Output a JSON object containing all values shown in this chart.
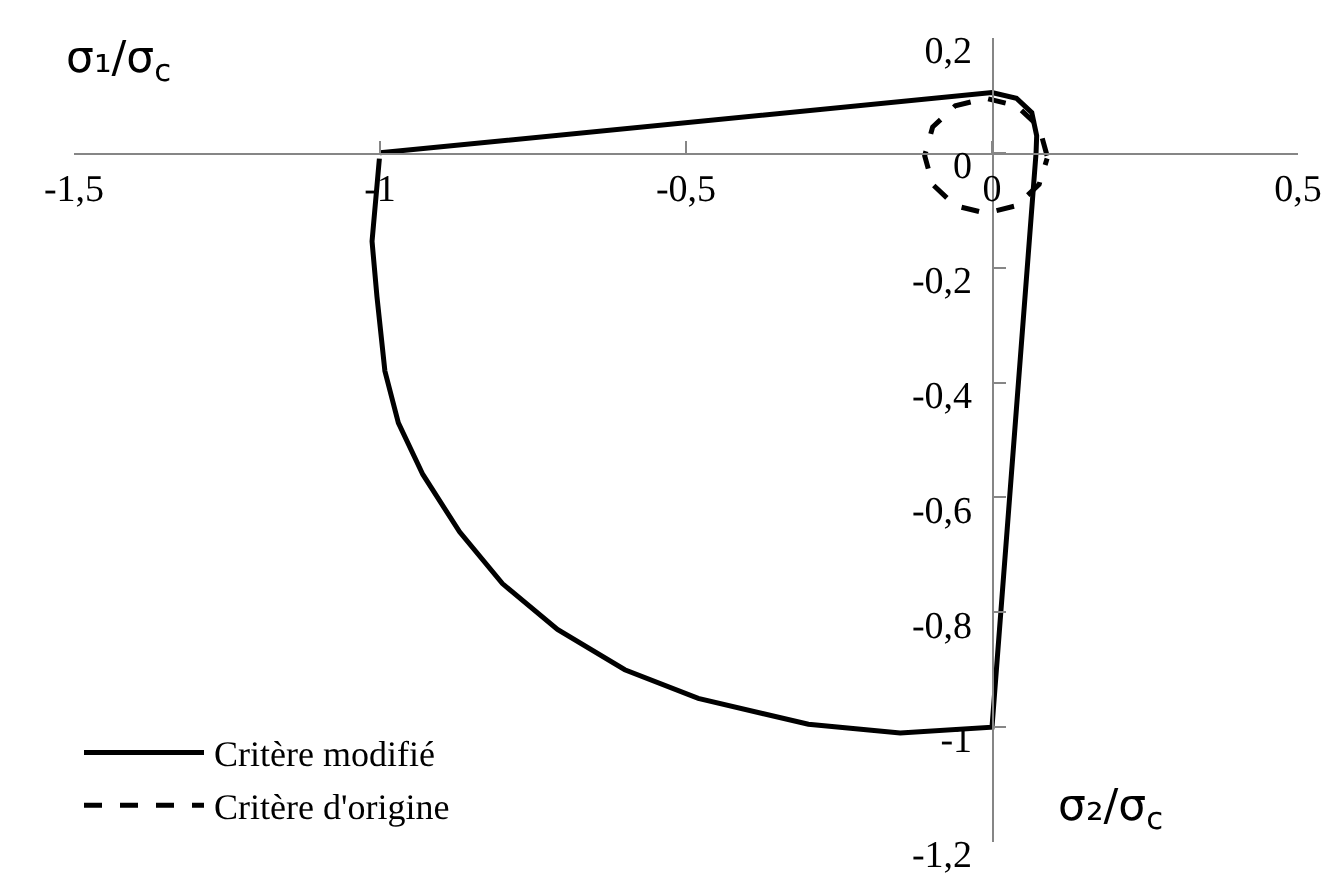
{
  "chart_data": {
    "type": "line",
    "xlabel": "σ₁/σ$_{c}$",
    "ylabel": "σ₂/σ$_{c}$",
    "xlim": [
      -1.5,
      0.5
    ],
    "ylim": [
      -1.2,
      0.2
    ],
    "xticks": [
      {
        "value": -1.5,
        "label": "-1,5"
      },
      -1,
      {
        "value": -0.5,
        "label": "-0,5"
      },
      0,
      {
        "value": 0.5,
        "label": "0,5"
      }
    ],
    "yticks": [
      {
        "value": -1.2,
        "label": "-1,2"
      },
      -1,
      {
        "value": -0.8,
        "label": "-0,8"
      },
      {
        "value": -0.6,
        "label": "-0,6"
      },
      {
        "value": -0.4,
        "label": "-0,4"
      },
      {
        "value": -0.2,
        "label": "-0,2"
      },
      0,
      {
        "value": 0.2,
        "label": "0,2"
      }
    ],
    "series": [
      {
        "name": "Critère modifié",
        "color": "#000000",
        "line_style": "solid",
        "x": [
          -1,
          0,
          0.04,
          0.065,
          0.073,
          0.072,
          0,
          -0.15,
          -0.3,
          -0.48,
          -0.6,
          -0.71,
          -0.8,
          -0.87,
          -0.93,
          -0.97,
          -0.992,
          -1.005,
          -1.013,
          -1.001
        ],
        "values": [
          0,
          0.105,
          0.095,
          0.07,
          0.03,
          0,
          -1,
          -1.01,
          -0.995,
          -0.95,
          -0.9,
          -0.83,
          -0.75,
          -0.66,
          -0.56,
          -0.47,
          -0.38,
          -0.25,
          -0.154,
          -0.01
        ]
      },
      {
        "name": "Critère d'origine",
        "color": "#000000",
        "line_style": "dashed",
        "x": [
          0.09,
          0.077,
          0.04,
          -0.01,
          -0.06,
          -0.097,
          -0.11,
          -0.097,
          -0.06,
          -0.01,
          0.04,
          0.077,
          0.09
        ],
        "values": [
          -0.005,
          0.045,
          0.082,
          0.095,
          0.082,
          0.045,
          -0.005,
          -0.055,
          -0.092,
          -0.105,
          -0.092,
          -0.055,
          -0.01
        ]
      }
    ],
    "grid": false,
    "legend": "bottom left",
    "marker": "none"
  }
}
